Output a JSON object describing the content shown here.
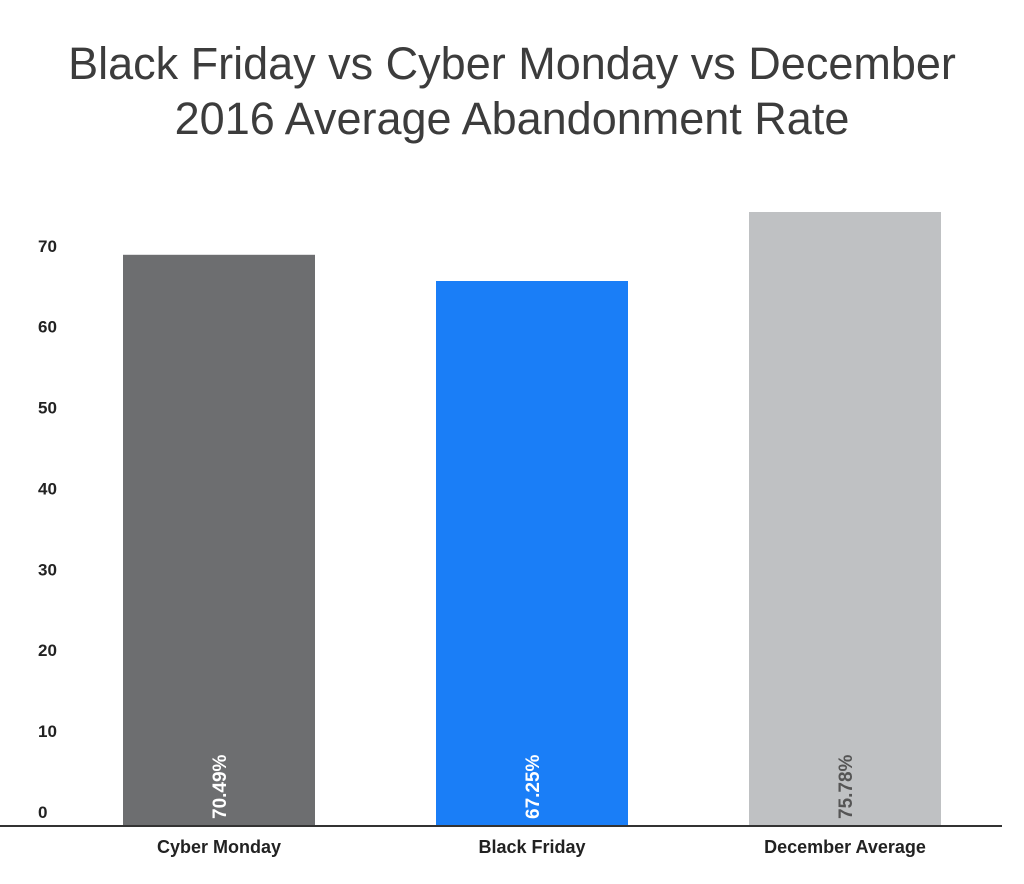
{
  "chart_data": {
    "type": "bar",
    "title_lines": [
      "Black Friday vs Cyber Monday vs December",
      "2016 Average Abandonment Rate"
    ],
    "categories": [
      "Cyber Monday",
      "Black Friday",
      "December Average"
    ],
    "values": [
      70.49,
      67.25,
      75.78
    ],
    "data_labels": [
      "70.49%",
      "67.25%",
      "75.78%"
    ],
    "colors": [
      "#6d6e70",
      "#1a7ef7",
      "#bfc1c3"
    ],
    "data_label_colors": [
      "#ffffff",
      "#ffffff",
      "#555555"
    ],
    "y_ticks": [
      0,
      10,
      20,
      30,
      40,
      50,
      60,
      70
    ],
    "ylim": [
      0,
      75.78
    ],
    "xlabel": "",
    "ylabel": "",
    "grid": false,
    "legend": "none"
  }
}
